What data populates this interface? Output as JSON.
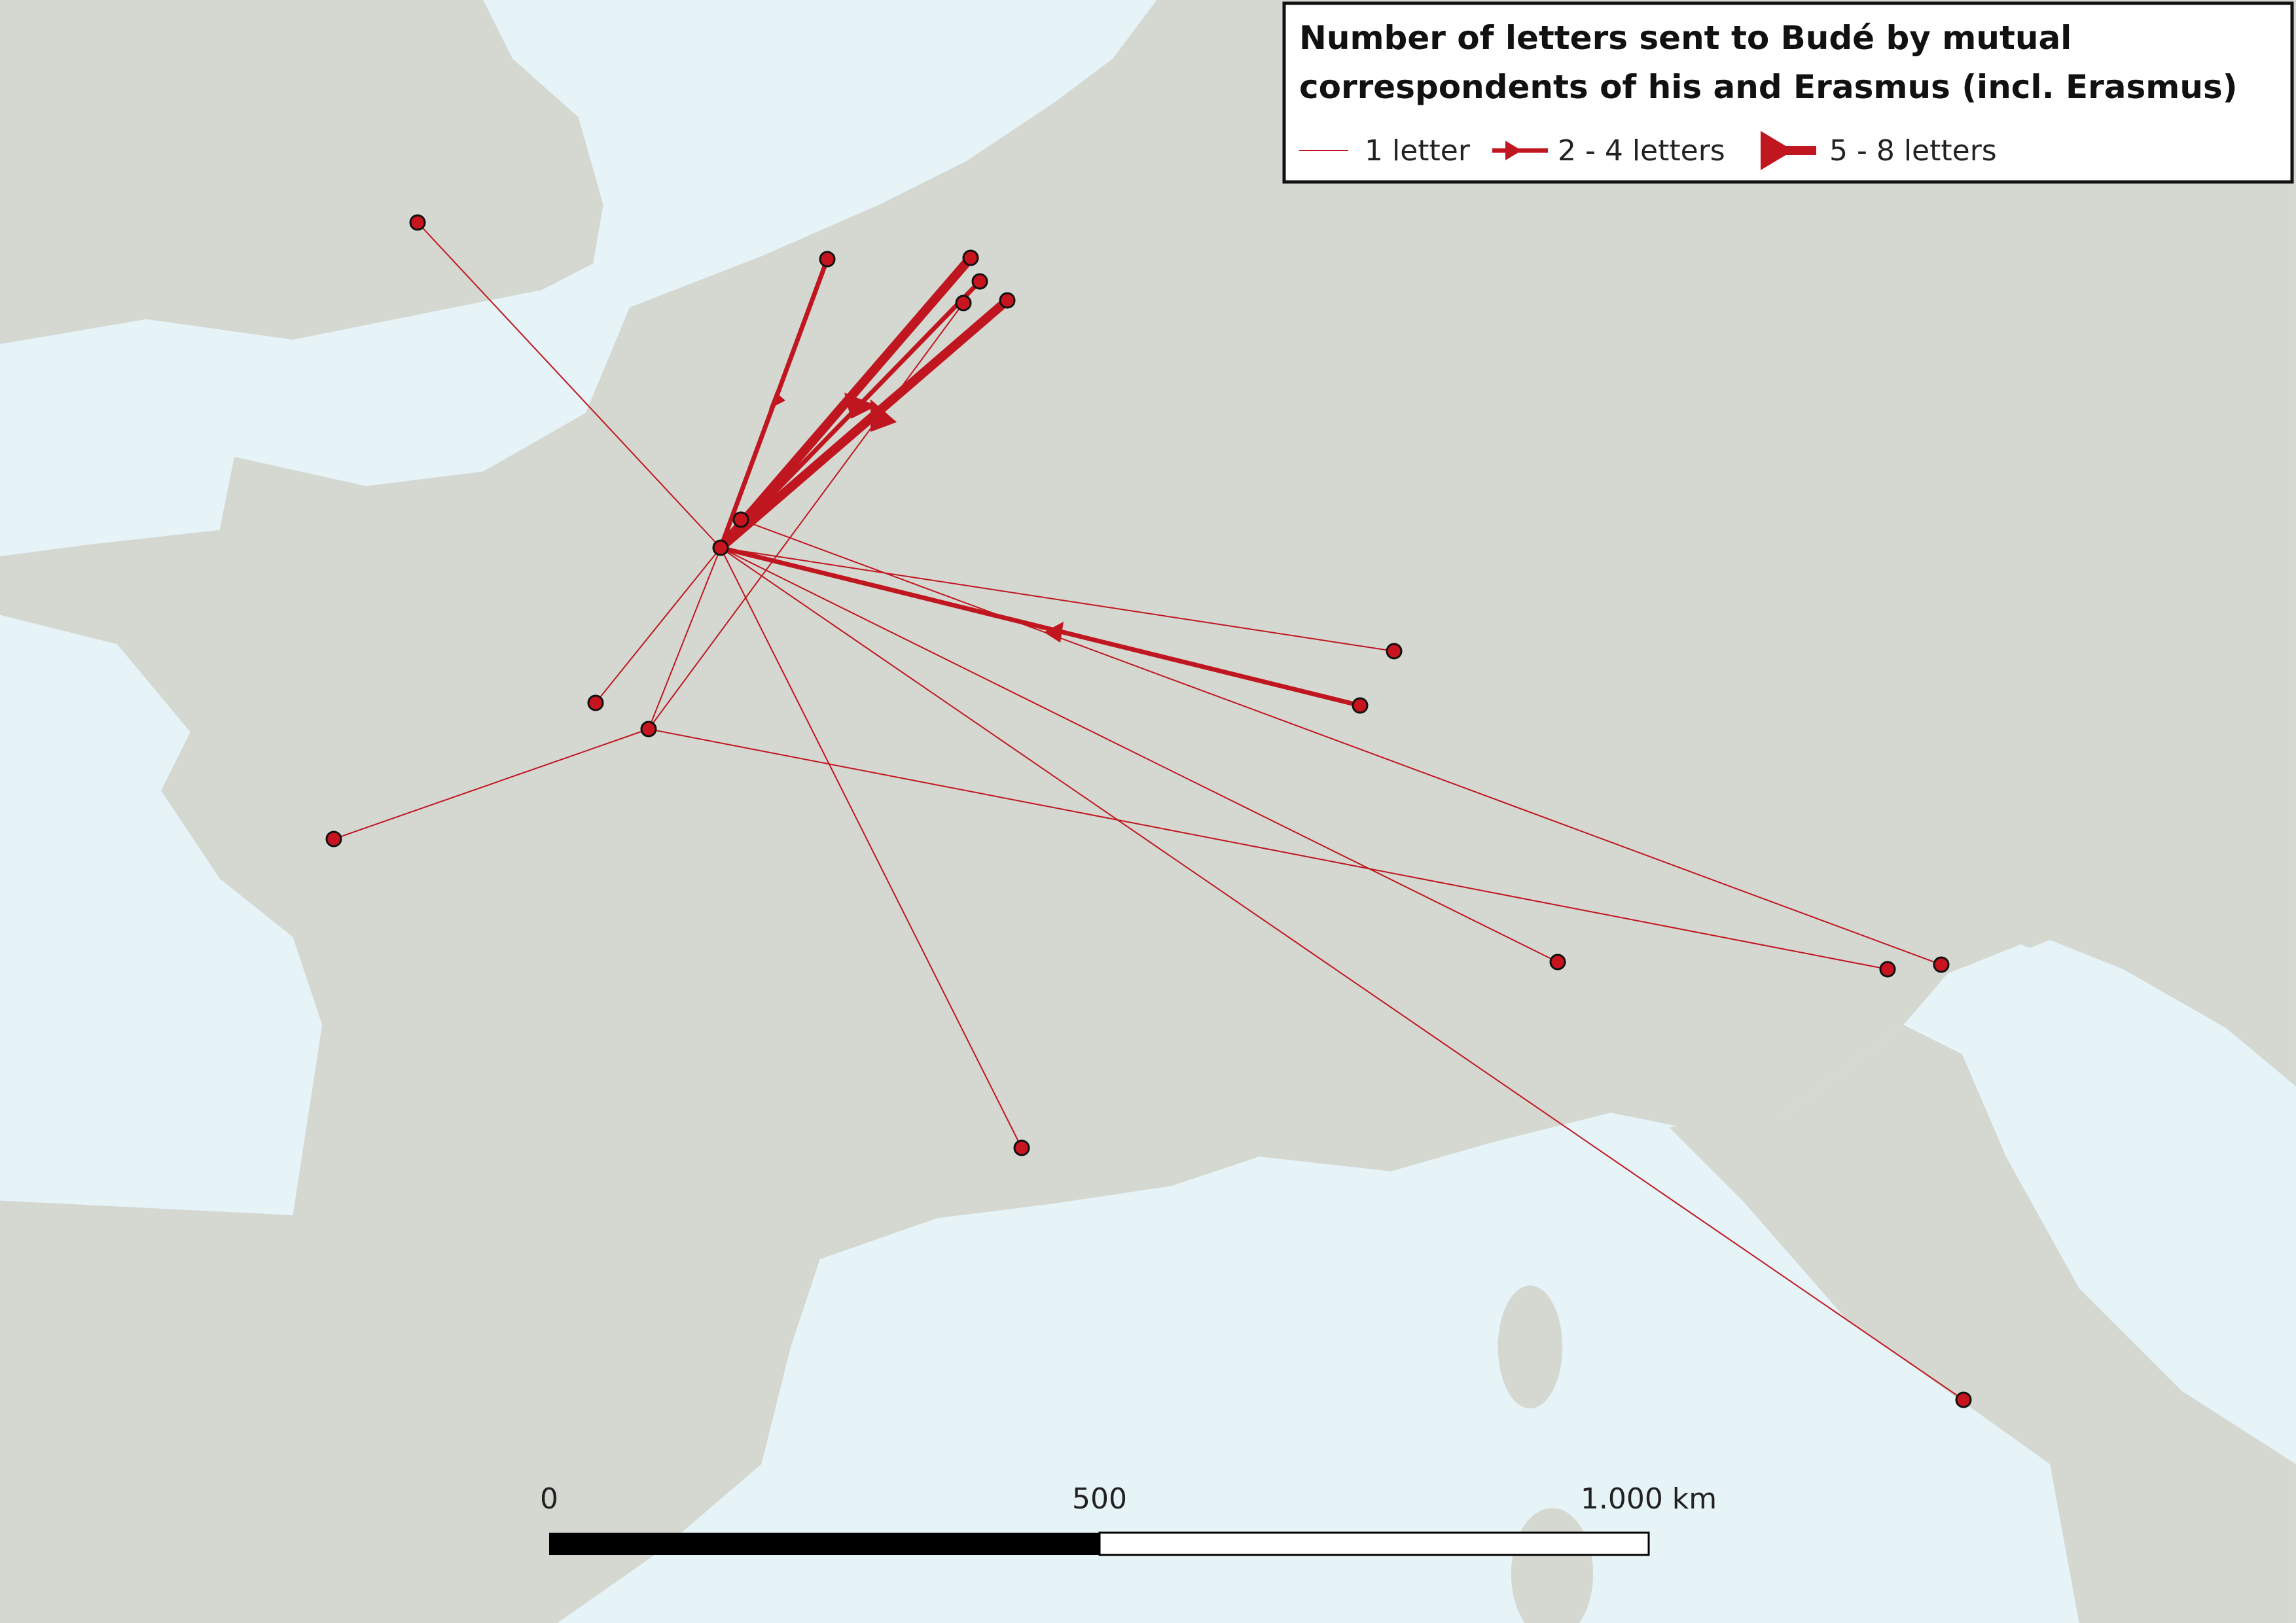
{
  "title": {
    "line1": "Number of letters sent to Budé by mutual",
    "line2": "correspondents of his and Erasmus (incl. Erasmus)"
  },
  "legend": {
    "items": [
      "1 letter",
      "2 - 4 letters",
      "5 - 8 letters"
    ]
  },
  "scale_bar": {
    "labels": [
      "0",
      "500",
      "1.000 km"
    ]
  }
}
